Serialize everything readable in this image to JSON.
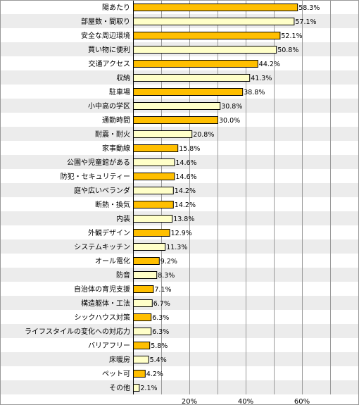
{
  "chart_data": {
    "type": "bar",
    "orientation": "horizontal",
    "categories": [
      "陽あたり",
      "部屋数・間取り",
      "安全な周辺環境",
      "買い物に便利",
      "交通アクセス",
      "収納",
      "駐車場",
      "小中高の学区",
      "通勤時間",
      "耐震・耐火",
      "家事動線",
      "公園や児童館がある",
      "防犯・セキュリティー",
      "庭や広いベランダ",
      "断熱・換気",
      "内装",
      "外観デザイン",
      "システムキッチン",
      "オール電化",
      "防音",
      "自治体の育児支援",
      "構造躯体・工法",
      "シックハウス対策",
      "ライフスタイルの変化への対応力",
      "バリアフリー",
      "床暖房",
      "ペット可",
      "その他"
    ],
    "values": [
      58.3,
      57.1,
      52.1,
      50.8,
      44.2,
      41.3,
      38.8,
      30.8,
      30.0,
      20.8,
      15.8,
      14.6,
      14.6,
      14.2,
      14.2,
      13.8,
      12.9,
      11.3,
      9.2,
      8.3,
      7.1,
      6.7,
      6.3,
      6.3,
      5.8,
      5.4,
      4.2,
      2.1
    ],
    "value_labels": [
      "58.3%",
      "57.1%",
      "52.1%",
      "50.8%",
      "44.2%",
      "41.3%",
      "38.8%",
      "30.8%",
      "30.0%",
      "20.8%",
      "15.8%",
      "14.6%",
      "14.6%",
      "14.2%",
      "14.2%",
      "13.8%",
      "12.9%",
      "11.3%",
      "9.2%",
      "8.3%",
      "7.1%",
      "6.7%",
      "6.3%",
      "6.3%",
      "5.8%",
      "5.4%",
      "4.2%",
      "2.1%"
    ],
    "x_ticks": [
      "20%",
      "40%",
      "60%"
    ],
    "x_tick_values": [
      20,
      40,
      60
    ],
    "xlim": [
      0,
      80
    ],
    "grid": true,
    "colors": {
      "bar_dark": "#ffbf00",
      "bar_light": "#ffffc8",
      "bar_border": "#000000",
      "row_shade": "#ececec",
      "row_plain": "#ffffff",
      "grid": "#999999"
    }
  }
}
